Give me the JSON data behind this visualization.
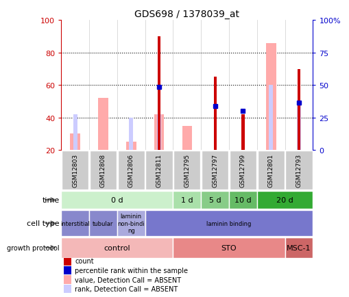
{
  "title": "GDS698 / 1378039_at",
  "samples": [
    "GSM12803",
    "GSM12808",
    "GSM12806",
    "GSM12811",
    "GSM12795",
    "GSM12797",
    "GSM12799",
    "GSM12801",
    "GSM12793"
  ],
  "count_values": [
    null,
    null,
    null,
    90,
    null,
    65,
    42,
    null,
    70
  ],
  "rank_values": [
    null,
    null,
    null,
    59,
    null,
    47,
    44,
    null,
    49
  ],
  "pink_bar_values": [
    30,
    52,
    25,
    42,
    35,
    null,
    null,
    86,
    null
  ],
  "light_blue_values": [
    42,
    null,
    40,
    42,
    null,
    null,
    null,
    60,
    49
  ],
  "ylim": [
    20,
    100
  ],
  "y_ticks": [
    20,
    40,
    60,
    80,
    100
  ],
  "y2_ticks": [
    0,
    25,
    50,
    75,
    100
  ],
  "y_tick_labels": [
    "20",
    "40",
    "60",
    "80",
    "100"
  ],
  "y2_tick_labels": [
    "0",
    "25",
    "50",
    "75",
    "100%"
  ],
  "time_row": {
    "groups": [
      {
        "label": "0 d",
        "start": 0,
        "end": 4,
        "color": "#ccf0cc"
      },
      {
        "label": "1 d",
        "start": 4,
        "end": 5,
        "color": "#aae0aa"
      },
      {
        "label": "5 d",
        "start": 5,
        "end": 6,
        "color": "#88cc88"
      },
      {
        "label": "10 d",
        "start": 6,
        "end": 7,
        "color": "#66bb66"
      },
      {
        "label": "20 d",
        "start": 7,
        "end": 9,
        "color": "#33aa33"
      }
    ]
  },
  "cell_type_row": {
    "groups": [
      {
        "label": "interstitial",
        "start": 0,
        "end": 1,
        "color": "#8888cc"
      },
      {
        "label": "tubular",
        "start": 1,
        "end": 2,
        "color": "#8888cc"
      },
      {
        "label": "laminin\nnon-bindi\nng",
        "start": 2,
        "end": 3,
        "color": "#aaaadd"
      },
      {
        "label": "laminin binding",
        "start": 3,
        "end": 9,
        "color": "#7777cc"
      }
    ]
  },
  "growth_protocol_row": {
    "groups": [
      {
        "label": "control",
        "start": 0,
        "end": 4,
        "color": "#f4b8b8"
      },
      {
        "label": "STO",
        "start": 4,
        "end": 8,
        "color": "#e88888"
      },
      {
        "label": "MSC-1",
        "start": 8,
        "end": 9,
        "color": "#cc6666"
      }
    ]
  },
  "legend": [
    {
      "label": "count",
      "color": "#cc0000"
    },
    {
      "label": "percentile rank within the sample",
      "color": "#0000cc"
    },
    {
      "label": "value, Detection Call = ABSENT",
      "color": "#ffaaaa"
    },
    {
      "label": "rank, Detection Call = ABSENT",
      "color": "#ccccff"
    }
  ],
  "bar_color_red": "#cc0000",
  "bar_color_pink": "#ffaaaa",
  "bar_color_light_blue": "#ccccff",
  "dot_color_blue": "#0000cc",
  "bg_color": "#ffffff",
  "label_color_left": "#cc0000",
  "label_color_right": "#0000cc",
  "sample_bg_color": "#cccccc"
}
